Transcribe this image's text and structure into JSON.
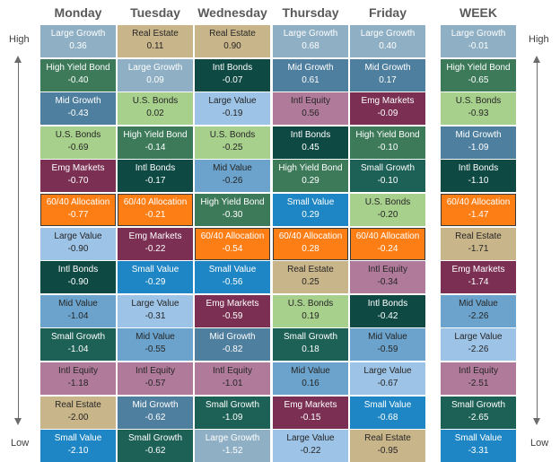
{
  "chart_data": {
    "type": "table",
    "columns": [
      "Monday",
      "Tuesday",
      "Wednesday",
      "Thursday",
      "Friday",
      "WEEK"
    ],
    "high_label": "High",
    "low_label": "Low",
    "rows": [
      [
        [
          "Large Growth",
          "0.36"
        ],
        [
          "Real Estate",
          "0.11"
        ],
        [
          "Real Estate",
          "0.90"
        ],
        [
          "Large Growth",
          "0.68"
        ],
        [
          "Large Growth",
          "0.40"
        ],
        [
          "Large Growth",
          "-0.01"
        ]
      ],
      [
        [
          "High Yield Bond",
          "-0.40"
        ],
        [
          "Large Growth",
          "0.09"
        ],
        [
          "Intl Bonds",
          "-0.07"
        ],
        [
          "Mid Growth",
          "0.61"
        ],
        [
          "Mid Growth",
          "0.17"
        ],
        [
          "High Yield Bond",
          "-0.65"
        ]
      ],
      [
        [
          "Mid Growth",
          "-0.43"
        ],
        [
          "U.S. Bonds",
          "0.02"
        ],
        [
          "Large Value",
          "-0.19"
        ],
        [
          "Intl Equity",
          "0.56"
        ],
        [
          "Emg Markets",
          "-0.09"
        ],
        [
          "U.S. Bonds",
          "-0.93"
        ]
      ],
      [
        [
          "U.S. Bonds",
          "-0.69"
        ],
        [
          "High Yield Bond",
          "-0.14"
        ],
        [
          "U.S. Bonds",
          "-0.25"
        ],
        [
          "Intl Bonds",
          "0.45"
        ],
        [
          "High Yield Bond",
          "-0.10"
        ],
        [
          "Mid Growth",
          "-1.09"
        ]
      ],
      [
        [
          "Emg Markets",
          "-0.70"
        ],
        [
          "Intl Bonds",
          "-0.17"
        ],
        [
          "Mid Value",
          "-0.26"
        ],
        [
          "High Yield Bond",
          "0.29"
        ],
        [
          "Small Growth",
          "-0.10"
        ],
        [
          "Intl Bonds",
          "-1.10"
        ]
      ],
      [
        [
          "60/40 Allocation",
          "-0.77"
        ],
        [
          "60/40 Allocation",
          "-0.21"
        ],
        [
          "High Yield Bond",
          "-0.30"
        ],
        [
          "Small Value",
          "0.29"
        ],
        [
          "U.S. Bonds",
          "-0.20"
        ],
        [
          "60/40 Allocation",
          "-1.47"
        ]
      ],
      [
        [
          "Large Value",
          "-0.90"
        ],
        [
          "Emg Markets",
          "-0.22"
        ],
        [
          "60/40 Allocation",
          "-0.54"
        ],
        [
          "60/40 Allocation",
          "0.28"
        ],
        [
          "60/40 Allocation",
          "-0.24"
        ],
        [
          "Real Estate",
          "-1.71"
        ]
      ],
      [
        [
          "Intl Bonds",
          "-0.90"
        ],
        [
          "Small Value",
          "-0.29"
        ],
        [
          "Small Value",
          "-0.56"
        ],
        [
          "Real Estate",
          "0.25"
        ],
        [
          "Intl Equity",
          "-0.34"
        ],
        [
          "Emg Markets",
          "-1.74"
        ]
      ],
      [
        [
          "Mid Value",
          "-1.04"
        ],
        [
          "Large Value",
          "-0.31"
        ],
        [
          "Emg Markets",
          "-0.59"
        ],
        [
          "U.S. Bonds",
          "0.19"
        ],
        [
          "Intl Bonds",
          "-0.42"
        ],
        [
          "Mid Value",
          "-2.26"
        ]
      ],
      [
        [
          "Small Growth",
          "-1.04"
        ],
        [
          "Mid Value",
          "-0.55"
        ],
        [
          "Mid Growth",
          "-0.82"
        ],
        [
          "Small Growth",
          "0.18"
        ],
        [
          "Mid Value",
          "-0.59"
        ],
        [
          "Large Value",
          "-2.26"
        ]
      ],
      [
        [
          "Intl Equity",
          "-1.18"
        ],
        [
          "Intl Equity",
          "-0.57"
        ],
        [
          "Intl Equity",
          "-1.01"
        ],
        [
          "Mid Value",
          "0.16"
        ],
        [
          "Large Value",
          "-0.67"
        ],
        [
          "Intl Equity",
          "-2.51"
        ]
      ],
      [
        [
          "Real Estate",
          "-2.00"
        ],
        [
          "Mid Growth",
          "-0.62"
        ],
        [
          "Small Growth",
          "-1.09"
        ],
        [
          "Emg Markets",
          "-0.15"
        ],
        [
          "Small Value",
          "-0.68"
        ],
        [
          "Small Growth",
          "-2.65"
        ]
      ],
      [
        [
          "Small Value",
          "-2.10"
        ],
        [
          "Small Growth",
          "-0.62"
        ],
        [
          "Large Growth",
          "-1.52"
        ],
        [
          "Large Value",
          "-0.22"
        ],
        [
          "Real Estate",
          "-0.95"
        ],
        [
          "Small Value",
          "-3.31"
        ]
      ]
    ]
  },
  "asset_colors": {
    "Large Growth": {
      "bg": "#8fb0c4",
      "fg": "#ffffff"
    },
    "Real Estate": {
      "bg": "#c9b58a",
      "fg": "#262626"
    },
    "High Yield Bond": {
      "bg": "#3d7a5a",
      "fg": "#ffffff"
    },
    "Intl Bonds": {
      "bg": "#0e4a43",
      "fg": "#ffffff"
    },
    "Mid Growth": {
      "bg": "#4f7f9e",
      "fg": "#ffffff"
    },
    "U.S. Bonds": {
      "bg": "#a8d08d",
      "fg": "#262626"
    },
    "Large Value": {
      "bg": "#9dc3e6",
      "fg": "#262626"
    },
    "Intl Equity": {
      "bg": "#b07a9a",
      "fg": "#262626"
    },
    "Emg Markets": {
      "bg": "#7a2f53",
      "fg": "#ffffff"
    },
    "Mid Value": {
      "bg": "#6ba3cc",
      "fg": "#262626"
    },
    "Small Growth": {
      "bg": "#1d6055",
      "fg": "#ffffff"
    },
    "60/40 Allocation": {
      "bg": "#fd7e14",
      "fg": "#ffffff"
    },
    "Small Value": {
      "bg": "#1e86c4",
      "fg": "#ffffff"
    }
  }
}
